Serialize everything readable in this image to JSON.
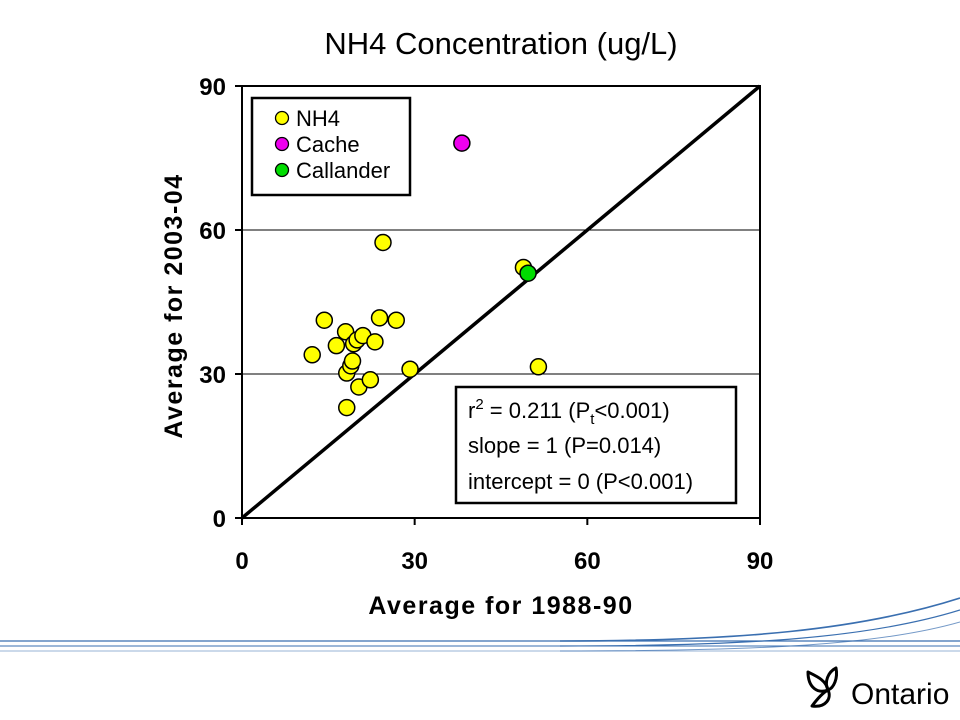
{
  "chart_data": {
    "type": "scatter",
    "title": "NH4 Concentration (ug/L)",
    "xlabel": "Average for 1988-90",
    "ylabel": "Average for 2003-04",
    "xlim": [
      0,
      90
    ],
    "ylim": [
      0,
      90
    ],
    "xticks": [
      "0",
      "30",
      "60",
      "90"
    ],
    "yticks": [
      "0",
      "30",
      "60",
      "90"
    ],
    "grid": "horizontal",
    "reference_line": {
      "type": "1:1",
      "from": [
        0,
        0
      ],
      "to": [
        90,
        90
      ]
    },
    "legend": {
      "position": "top-left",
      "entries": [
        {
          "name": "NH4",
          "color": "#ffff00"
        },
        {
          "name": "Cache",
          "color": "#ee00ee"
        },
        {
          "name": "Callander",
          "color": "#00dd00"
        }
      ]
    },
    "series": [
      {
        "name": "NH4",
        "color": "#ffff00",
        "points": [
          {
            "x": 12.2,
            "y": 34.0
          },
          {
            "x": 14.3,
            "y": 41.2
          },
          {
            "x": 16.4,
            "y": 35.9
          },
          {
            "x": 18.0,
            "y": 38.8
          },
          {
            "x": 18.2,
            "y": 30.2
          },
          {
            "x": 18.2,
            "y": 23.0
          },
          {
            "x": 18.9,
            "y": 31.7
          },
          {
            "x": 19.2,
            "y": 32.7
          },
          {
            "x": 19.4,
            "y": 36.3
          },
          {
            "x": 20.0,
            "y": 37.1
          },
          {
            "x": 20.3,
            "y": 27.3
          },
          {
            "x": 21.0,
            "y": 38.0
          },
          {
            "x": 22.3,
            "y": 28.8
          },
          {
            "x": 23.1,
            "y": 36.7
          },
          {
            "x": 23.9,
            "y": 41.7
          },
          {
            "x": 24.5,
            "y": 57.4
          },
          {
            "x": 26.8,
            "y": 41.2
          },
          {
            "x": 29.2,
            "y": 31.0
          },
          {
            "x": 48.9,
            "y": 52.2
          },
          {
            "x": 51.5,
            "y": 31.5
          }
        ]
      },
      {
        "name": "Cache",
        "color": "#ee00ee",
        "points": [
          {
            "x": 38.2,
            "y": 78.1
          }
        ]
      },
      {
        "name": "Callander",
        "color": "#00dd00",
        "points": [
          {
            "x": 49.7,
            "y": 51.0
          }
        ]
      }
    ],
    "annotation": {
      "r2_label": "r",
      "r2_exp": "2",
      "r2_value": " = 0.211  (P",
      "p_sub": "t",
      "p_rest": "<0.001)",
      "slope": "slope = 1 (P=0.014)",
      "intercept": "intercept = 0 (P<0.001)"
    }
  },
  "logo": {
    "text": "Ontario"
  },
  "colors": {
    "footer_lines": "#3a6fb0"
  }
}
